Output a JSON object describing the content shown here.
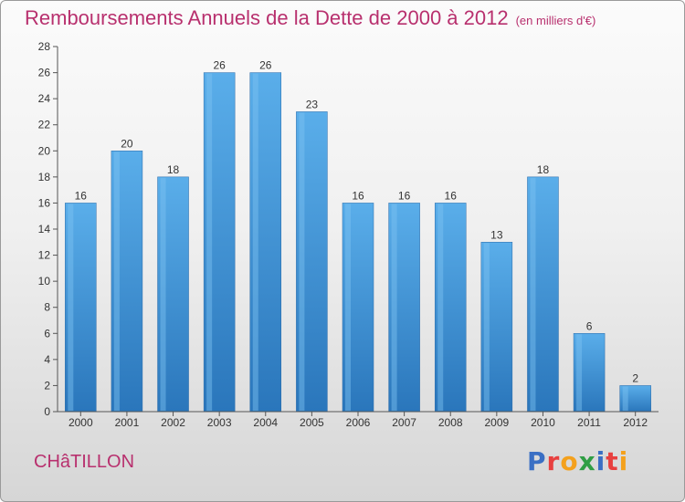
{
  "chart_data": {
    "type": "bar",
    "title": "Remboursements Annuels de la Dette de 2000 à 2012",
    "subtitle": "(en milliers d'€)",
    "categories": [
      "2000",
      "2001",
      "2002",
      "2003",
      "2004",
      "2005",
      "2006",
      "2007",
      "2008",
      "2009",
      "2010",
      "2011",
      "2012"
    ],
    "values": [
      16,
      20,
      18,
      26,
      26,
      23,
      16,
      16,
      16,
      13,
      18,
      6,
      2
    ],
    "ylim": [
      0,
      28
    ],
    "yticks": [
      0,
      2,
      4,
      6,
      8,
      10,
      12,
      14,
      16,
      18,
      20,
      22,
      24,
      26,
      28
    ],
    "xlabel": "",
    "ylabel": "",
    "grid": false,
    "data_labels": true,
    "bar_color": "#3a8fd6",
    "bar_color_light": "#5aaeea",
    "bar_color_dark": "#2a76bb"
  },
  "footer": {
    "commune": "CHâTILLON",
    "logo": "Proxiti"
  },
  "colors": {
    "title": "#b8306e",
    "logo_letters": [
      "#3a6fc4",
      "#e8403f",
      "#f4a11d",
      "#2f9e44",
      "#3a6fc4",
      "#e8403f",
      "#f4a11d"
    ]
  }
}
